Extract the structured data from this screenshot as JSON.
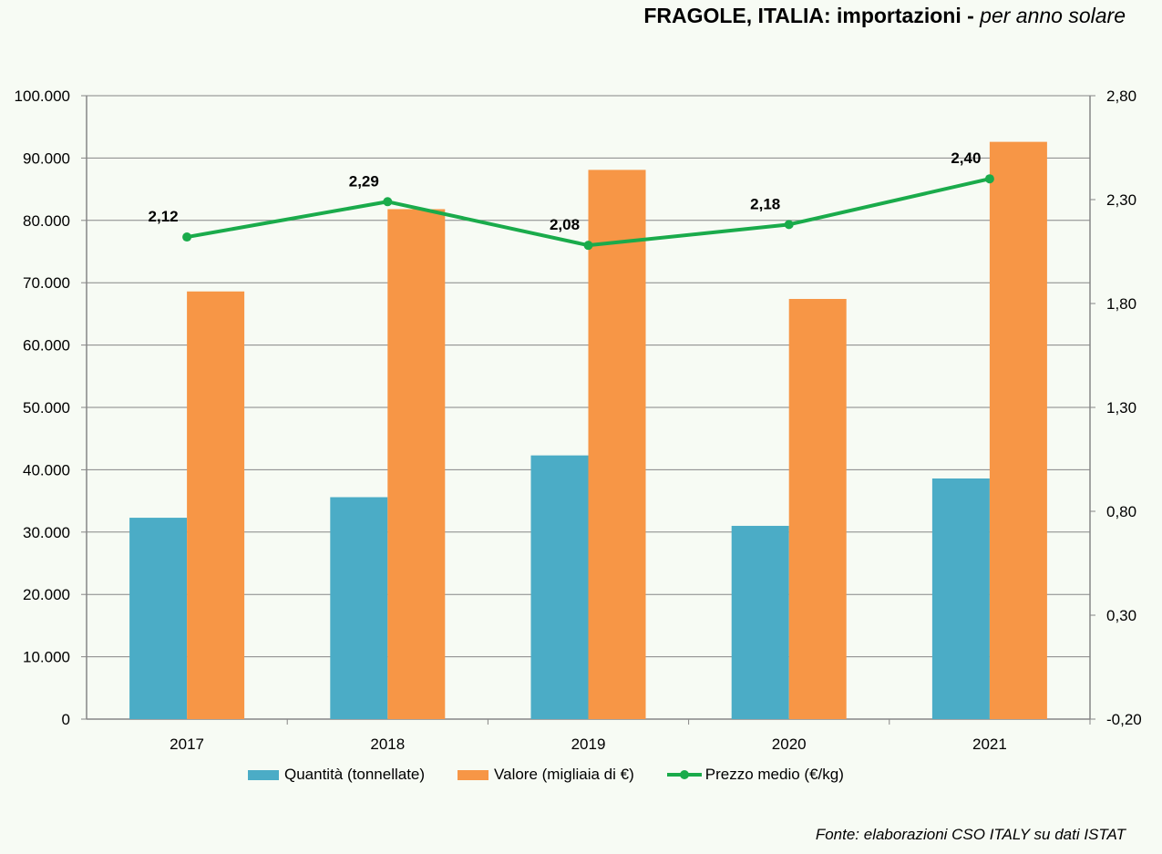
{
  "title": {
    "main": "FRAGOLE, ITALIA: importazioni -",
    "sub": "per anno solare"
  },
  "source": "Fonte: elaborazioni CSO ITALY su dati ISTAT",
  "colors": {
    "quantita": "#4bacc6",
    "valore": "#f79646",
    "prezzo": "#1aab4b",
    "grid": "#868686"
  },
  "legend": {
    "quantita": "Quantità (tonnellate)",
    "valore": "Valore (migliaia di €)",
    "prezzo": "Prezzo medio (€/kg)"
  },
  "chart_data": {
    "type": "bar",
    "title": "FRAGOLE, ITALIA: importazioni - per anno solare",
    "categories": [
      "2017",
      "2018",
      "2019",
      "2020",
      "2021"
    ],
    "series": [
      {
        "name": "Quantità (tonnellate)",
        "type": "bar",
        "axis": "left",
        "values": [
          32300,
          35600,
          42300,
          31000,
          38600
        ]
      },
      {
        "name": "Valore (migliaia di €)",
        "type": "bar",
        "axis": "left",
        "values": [
          68600,
          81800,
          88100,
          67400,
          92600
        ]
      },
      {
        "name": "Prezzo medio (€/kg)",
        "type": "line",
        "axis": "right",
        "values": [
          2.12,
          2.29,
          2.08,
          2.18,
          2.4
        ],
        "labels": [
          "2,12",
          "2,29",
          "2,08",
          "2,18",
          "2,40"
        ]
      }
    ],
    "y_left": {
      "min": 0,
      "max": 100000,
      "ticks": [
        "0",
        "10.000",
        "20.000",
        "30.000",
        "40.000",
        "50.000",
        "60.000",
        "70.000",
        "80.000",
        "90.000",
        "100.000"
      ]
    },
    "y_right": {
      "min": -0.2,
      "max": 2.8,
      "ticks": [
        "-0,20",
        "0,30",
        "0,80",
        "1,30",
        "1,80",
        "2,30",
        "2,80"
      ]
    },
    "grid": true,
    "legend_position": "bottom"
  }
}
